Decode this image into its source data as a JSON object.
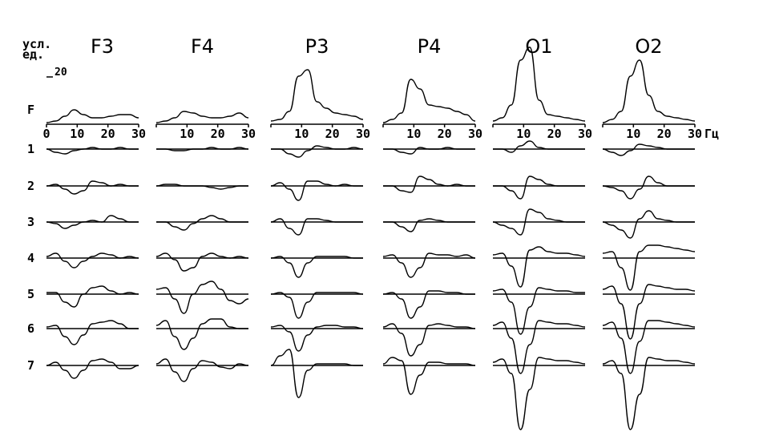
{
  "chart_data": {
    "type": "line",
    "y_unit": "усл.\nед.",
    "scale_bar": 20,
    "x_unit": "Гц",
    "xlim": [
      0,
      30
    ],
    "xticks": [
      0,
      10,
      20,
      30
    ],
    "x": [
      0,
      3,
      6,
      9,
      12,
      15,
      18,
      21,
      24,
      27,
      30
    ],
    "columns": [
      "F3",
      "F4",
      "P3",
      "P4",
      "O1",
      "O2"
    ],
    "rows": [
      "F",
      "1",
      "2",
      "3",
      "4",
      "5",
      "6",
      "7"
    ],
    "values": [
      [
        [
          1,
          2,
          5,
          9,
          6,
          4,
          4,
          5,
          6,
          6,
          4
        ],
        [
          1,
          2,
          4,
          8,
          7,
          5,
          4,
          4,
          5,
          7,
          4
        ],
        [
          2,
          3,
          8,
          30,
          34,
          14,
          10,
          7,
          6,
          5,
          3
        ],
        [
          1,
          3,
          7,
          28,
          22,
          12,
          11,
          10,
          8,
          6,
          2
        ],
        [
          2,
          4,
          12,
          40,
          48,
          15,
          6,
          5,
          4,
          3,
          2
        ],
        [
          1,
          3,
          8,
          30,
          40,
          18,
          8,
          5,
          4,
          3,
          2
        ]
      ],
      [
        [
          0,
          -2,
          -3,
          -1,
          0,
          1,
          0,
          0,
          1,
          0,
          0
        ],
        [
          0,
          0,
          -1,
          -1,
          0,
          0,
          1,
          0,
          0,
          1,
          0
        ],
        [
          0,
          0,
          -3,
          -5,
          -1,
          2,
          1,
          0,
          0,
          1,
          0
        ],
        [
          0,
          0,
          -2,
          -3,
          1,
          0,
          0,
          1,
          0,
          0,
          0
        ],
        [
          0,
          0,
          -2,
          2,
          5,
          1,
          0,
          0,
          0,
          0,
          0
        ],
        [
          0,
          -2,
          -4,
          -1,
          3,
          2,
          1,
          0,
          0,
          0,
          0
        ]
      ],
      [
        [
          0,
          1,
          -2,
          -5,
          -3,
          3,
          2,
          0,
          1,
          0,
          0
        ],
        [
          0,
          1,
          1,
          0,
          0,
          0,
          -1,
          -2,
          -1,
          0,
          0
        ],
        [
          0,
          2,
          -2,
          -9,
          3,
          3,
          1,
          0,
          1,
          0,
          0
        ],
        [
          0,
          0,
          -3,
          -4,
          6,
          4,
          1,
          0,
          1,
          0,
          0
        ],
        [
          0,
          0,
          -3,
          -8,
          6,
          4,
          1,
          0,
          0,
          0,
          0
        ],
        [
          0,
          -1,
          -3,
          -8,
          -2,
          6,
          2,
          0,
          0,
          0,
          0
        ]
      ],
      [
        [
          0,
          -1,
          -4,
          -2,
          0,
          1,
          0,
          4,
          2,
          0,
          0
        ],
        [
          0,
          0,
          -3,
          -5,
          -1,
          2,
          4,
          2,
          0,
          0,
          0
        ],
        [
          0,
          2,
          -4,
          -8,
          2,
          2,
          1,
          0,
          0,
          0,
          0
        ],
        [
          0,
          0,
          -3,
          -6,
          1,
          2,
          1,
          0,
          0,
          0,
          0
        ],
        [
          0,
          -2,
          -4,
          -8,
          8,
          6,
          2,
          1,
          0,
          0,
          0
        ],
        [
          0,
          -2,
          -5,
          -10,
          2,
          7,
          2,
          1,
          0,
          0,
          0
        ]
      ],
      [
        [
          1,
          3,
          -2,
          -6,
          -2,
          1,
          3,
          2,
          0,
          1,
          0
        ],
        [
          1,
          3,
          -1,
          -8,
          -6,
          1,
          3,
          1,
          0,
          1,
          0
        ],
        [
          0,
          1,
          -3,
          -12,
          -3,
          1,
          1,
          1,
          1,
          0,
          0
        ],
        [
          1,
          2,
          -3,
          -12,
          -6,
          3,
          2,
          2,
          1,
          2,
          0
        ],
        [
          2,
          3,
          -5,
          -18,
          5,
          7,
          4,
          3,
          3,
          2,
          1
        ],
        [
          3,
          4,
          -6,
          -20,
          4,
          8,
          8,
          7,
          6,
          5,
          4
        ]
      ],
      [
        [
          1,
          1,
          -5,
          -8,
          0,
          4,
          5,
          2,
          0,
          1,
          0
        ],
        [
          3,
          4,
          -3,
          -12,
          0,
          6,
          8,
          3,
          -4,
          -6,
          -3
        ],
        [
          0,
          1,
          -2,
          -15,
          -5,
          1,
          1,
          1,
          1,
          1,
          0
        ],
        [
          0,
          1,
          -3,
          -15,
          -8,
          2,
          2,
          1,
          1,
          0,
          0
        ],
        [
          2,
          3,
          -5,
          -25,
          -8,
          4,
          3,
          2,
          2,
          1,
          1
        ],
        [
          3,
          5,
          -6,
          -28,
          -6,
          6,
          5,
          4,
          3,
          3,
          2
        ]
      ],
      [
        [
          1,
          2,
          -5,
          -10,
          -4,
          3,
          4,
          5,
          3,
          0,
          0
        ],
        [
          2,
          5,
          -5,
          -13,
          -6,
          3,
          6,
          6,
          1,
          0,
          0
        ],
        [
          1,
          2,
          -2,
          -14,
          -4,
          1,
          2,
          2,
          1,
          1,
          0
        ],
        [
          1,
          3,
          -3,
          -17,
          -10,
          2,
          3,
          2,
          1,
          1,
          0
        ],
        [
          2,
          4,
          -6,
          -28,
          -10,
          5,
          4,
          3,
          3,
          2,
          1
        ],
        [
          2,
          4,
          -6,
          -28,
          -8,
          5,
          5,
          4,
          3,
          2,
          1
        ]
      ],
      [
        [
          0,
          2,
          -3,
          -8,
          -3,
          3,
          4,
          2,
          -2,
          -2,
          0
        ],
        [
          1,
          4,
          -4,
          -10,
          -2,
          3,
          2,
          -1,
          -2,
          1,
          0
        ],
        [
          0,
          6,
          10,
          -20,
          -3,
          1,
          1,
          1,
          1,
          0,
          0
        ],
        [
          1,
          5,
          3,
          -18,
          -6,
          2,
          2,
          1,
          1,
          1,
          0
        ],
        [
          2,
          4,
          -5,
          -40,
          -15,
          5,
          4,
          3,
          3,
          2,
          1
        ],
        [
          1,
          3,
          -5,
          -40,
          -18,
          5,
          4,
          3,
          3,
          2,
          1
        ]
      ]
    ]
  }
}
